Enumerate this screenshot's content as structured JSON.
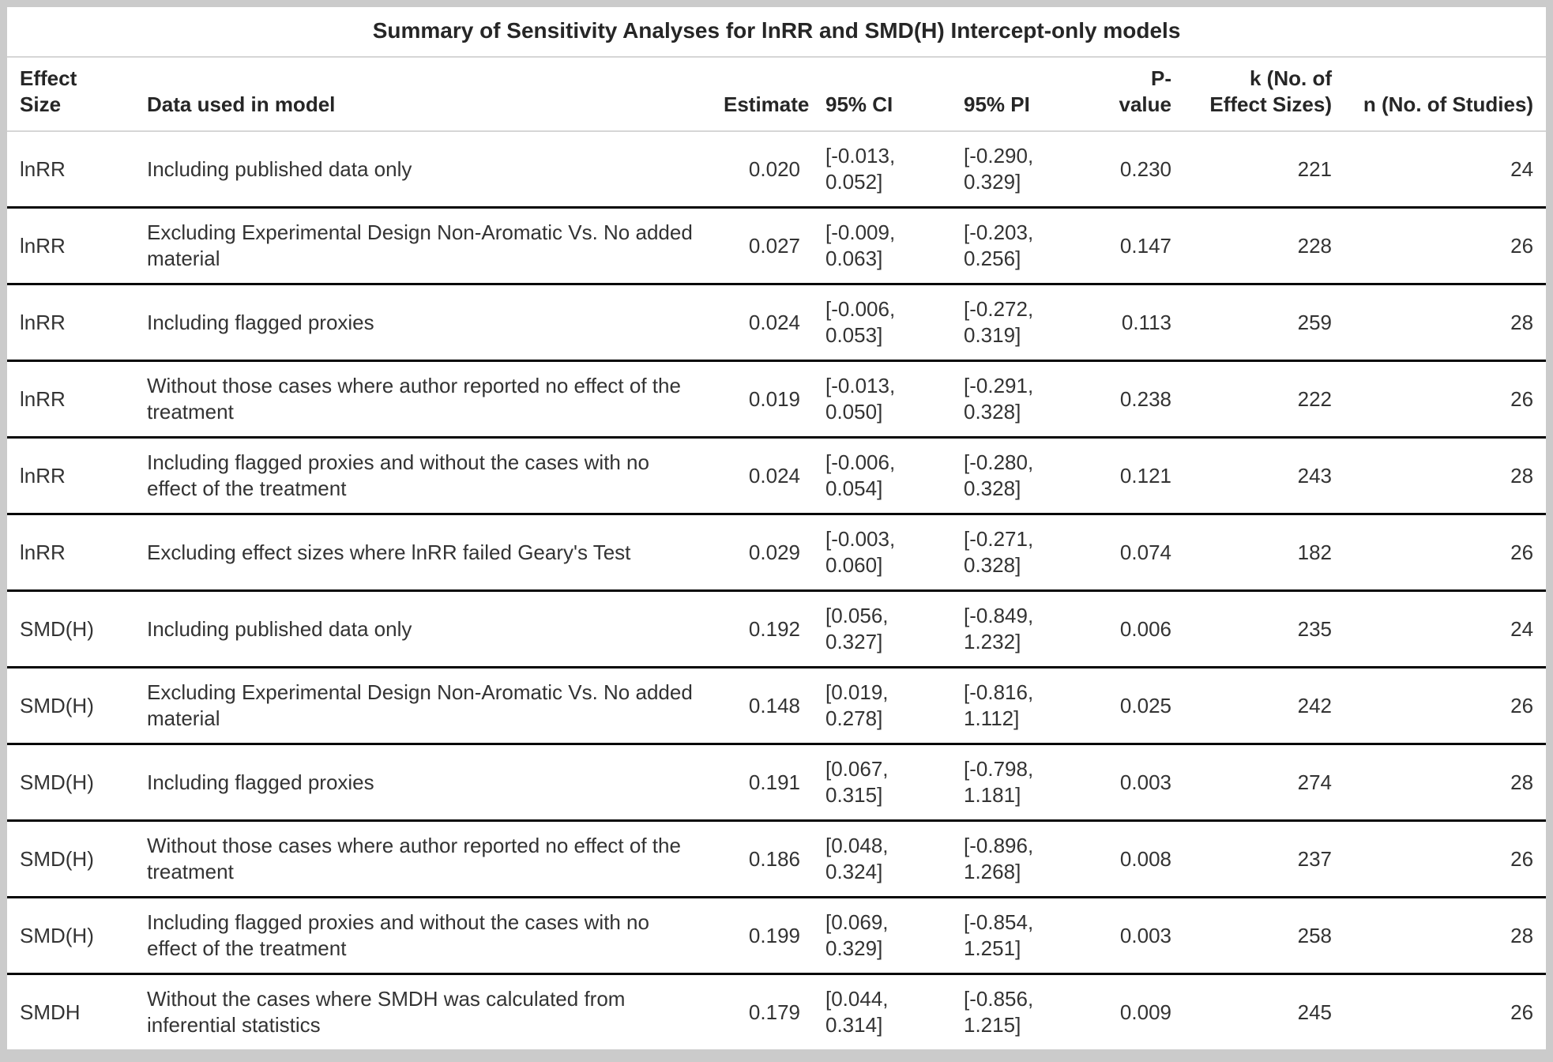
{
  "table": {
    "title": "Summary of Sensitivity Analyses for lnRR and SMD(H) Intercept-only models",
    "columns": [
      {
        "id": "effect_size",
        "label": "Effect Size"
      },
      {
        "id": "data",
        "label": "Data used in model"
      },
      {
        "id": "estimate",
        "label": "Estimate"
      },
      {
        "id": "ci",
        "label": "95% CI"
      },
      {
        "id": "pi",
        "label": "95% PI"
      },
      {
        "id": "p",
        "label": "P-value"
      },
      {
        "id": "k",
        "label": "k (No. of Effect Sizes)"
      },
      {
        "id": "n",
        "label": "n (No. of Studies)"
      }
    ],
    "rows": [
      {
        "effect_size": "lnRR",
        "data": "Including published data only",
        "estimate": "0.020",
        "ci": "[-0.013, 0.052]",
        "pi": "[-0.290, 0.329]",
        "p": "0.230",
        "k": "221",
        "n": "24"
      },
      {
        "effect_size": "lnRR",
        "data": "Excluding Experimental Design Non-Aromatic Vs. No added material",
        "estimate": "0.027",
        "ci": "[-0.009, 0.063]",
        "pi": "[-0.203, 0.256]",
        "p": "0.147",
        "k": "228",
        "n": "26"
      },
      {
        "effect_size": "lnRR",
        "data": "Including flagged proxies",
        "estimate": "0.024",
        "ci": "[-0.006, 0.053]",
        "pi": "[-0.272, 0.319]",
        "p": "0.113",
        "k": "259",
        "n": "28"
      },
      {
        "effect_size": "lnRR",
        "data": "Without those cases where author reported no effect of the treatment",
        "estimate": "0.019",
        "ci": "[-0.013, 0.050]",
        "pi": "[-0.291, 0.328]",
        "p": "0.238",
        "k": "222",
        "n": "26"
      },
      {
        "effect_size": "lnRR",
        "data": "Including flagged proxies and without the cases with no effect of the treatment",
        "estimate": "0.024",
        "ci": "[-0.006, 0.054]",
        "pi": "[-0.280, 0.328]",
        "p": "0.121",
        "k": "243",
        "n": "28"
      },
      {
        "effect_size": "lnRR",
        "data": "Excluding effect sizes where lnRR failed Geary's Test",
        "estimate": "0.029",
        "ci": "[-0.003, 0.060]",
        "pi": "[-0.271, 0.328]",
        "p": "0.074",
        "k": "182",
        "n": "26"
      },
      {
        "effect_size": "SMD(H)",
        "data": "Including published data only",
        "estimate": "0.192",
        "ci": "[0.056, 0.327]",
        "pi": "[-0.849, 1.232]",
        "p": "0.006",
        "k": "235",
        "n": "24"
      },
      {
        "effect_size": "SMD(H)",
        "data": "Excluding Experimental Design Non-Aromatic Vs. No added material",
        "estimate": "0.148",
        "ci": "[0.019, 0.278]",
        "pi": "[-0.816, 1.112]",
        "p": "0.025",
        "k": "242",
        "n": "26"
      },
      {
        "effect_size": "SMD(H)",
        "data": "Including flagged proxies",
        "estimate": "0.191",
        "ci": "[0.067, 0.315]",
        "pi": "[-0.798, 1.181]",
        "p": "0.003",
        "k": "274",
        "n": "28"
      },
      {
        "effect_size": "SMD(H)",
        "data": "Without those cases where author reported no effect of the treatment",
        "estimate": "0.186",
        "ci": "[0.048, 0.324]",
        "pi": "[-0.896, 1.268]",
        "p": "0.008",
        "k": "237",
        "n": "26"
      },
      {
        "effect_size": "SMD(H)",
        "data": "Including flagged proxies and without the cases with no effect of the treatment",
        "estimate": "0.199",
        "ci": "[0.069, 0.329]",
        "pi": "[-0.854, 1.251]",
        "p": "0.003",
        "k": "258",
        "n": "28"
      },
      {
        "effect_size": "SMDH",
        "data": "Without the cases where SMDH was calculated from inferential statistics",
        "estimate": "0.179",
        "ci": "[0.044, 0.314]",
        "pi": "[-0.856, 1.215]",
        "p": "0.009",
        "k": "245",
        "n": "26"
      }
    ]
  },
  "colors": {
    "frame": "#cbcbcb",
    "light_separator": "#d6d6d6",
    "row_divider": "#060606",
    "body_text": "#333333",
    "heading_text": "#262626",
    "background": "#ffffff"
  }
}
